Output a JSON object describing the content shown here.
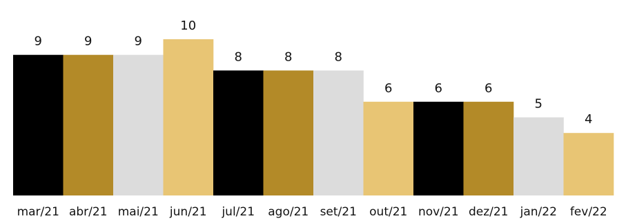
{
  "chart_data": {
    "type": "bar",
    "categories": [
      "mar/21",
      "abr/21",
      "mai/21",
      "jun/21",
      "jul/21",
      "ago/21",
      "set/21",
      "out/21",
      "nov/21",
      "dez/21",
      "jan/22",
      "fev/22"
    ],
    "values": [
      9,
      9,
      9,
      10,
      8,
      8,
      8,
      6,
      6,
      6,
      5,
      4
    ],
    "bar_colors": [
      "#000000",
      "#b38a28",
      "#dcdcdc",
      "#e8c574",
      "#000000",
      "#b38a28",
      "#dcdcdc",
      "#e8c574",
      "#000000",
      "#b38a28",
      "#dcdcdc",
      "#e8c574"
    ],
    "data_labels": [
      "9",
      "9",
      "9",
      "10",
      "8",
      "8",
      "8",
      "6",
      "6",
      "6",
      "5",
      "4"
    ],
    "title": "",
    "xlabel": "",
    "ylabel": "",
    "ylim": [
      0,
      10
    ],
    "grid": false,
    "legend": "none"
  }
}
